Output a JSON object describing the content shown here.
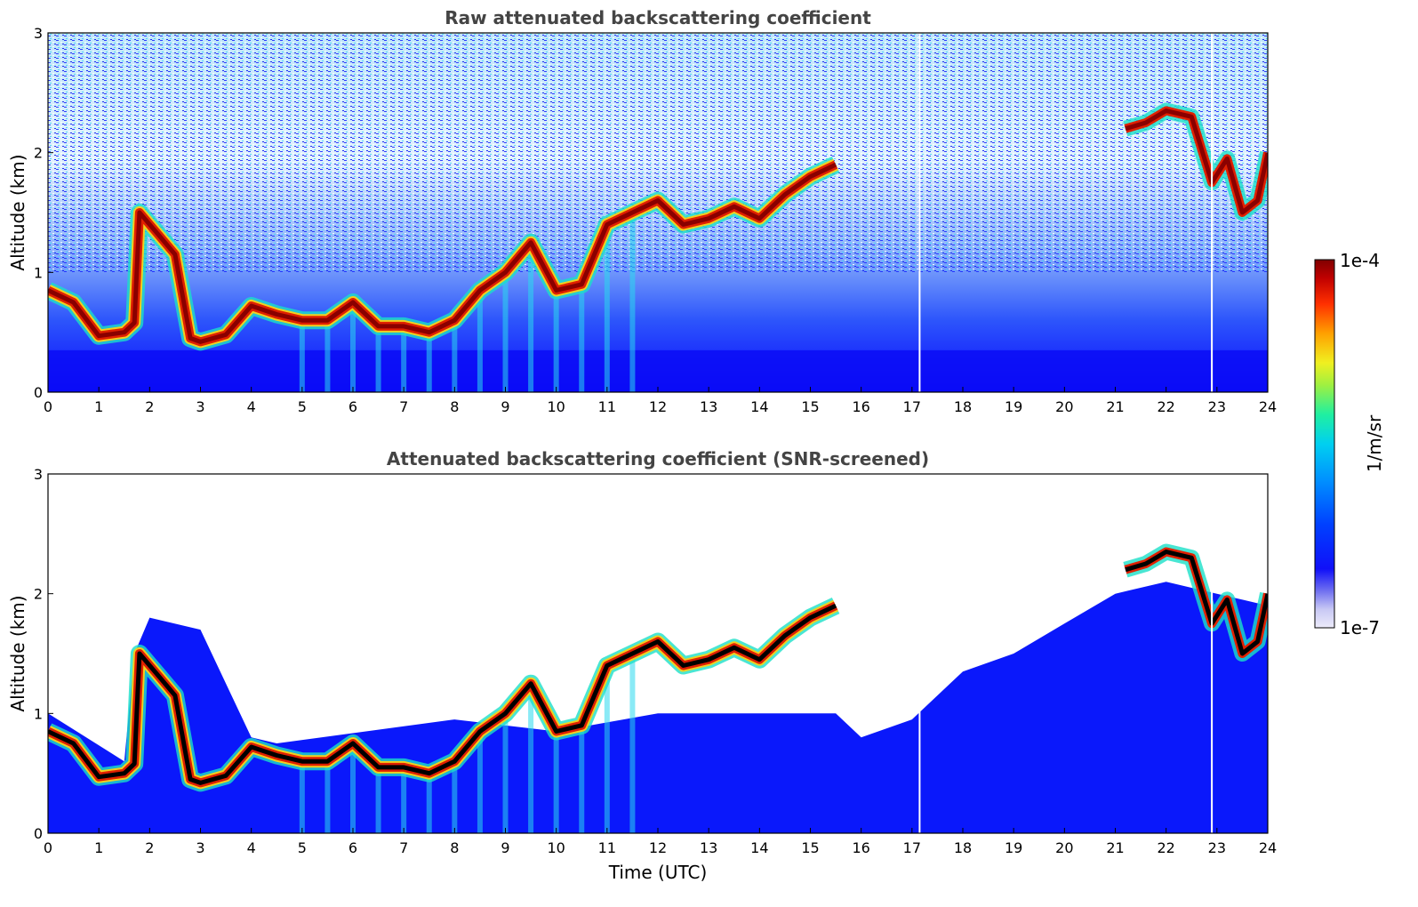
{
  "figure": {
    "xlabel": "Time (UTC)",
    "ylabel": "Altitude (km)",
    "colorbar": {
      "label": "1/m/sr",
      "min_label": "1e-7",
      "max_label": "1e-4",
      "scale": "log",
      "colormap": [
        "#e8e8f8",
        "#9a9af0",
        "#2020f8",
        "#0000ff",
        "#0060ff",
        "#00b0ff",
        "#00e8c8",
        "#60ff60",
        "#e8f020",
        "#ffb000",
        "#ff4000",
        "#d00000",
        "#800000"
      ]
    }
  },
  "chart_data": [
    {
      "type": "heatmap",
      "title": "Raw attenuated backscattering coefficient",
      "xlabel": "",
      "ylabel": "Altitude (km)",
      "xlim": [
        0,
        24
      ],
      "ylim": [
        0,
        3
      ],
      "xticks": [
        0,
        1,
        2,
        3,
        4,
        5,
        6,
        7,
        8,
        9,
        10,
        11,
        12,
        13,
        14,
        15,
        16,
        17,
        18,
        19,
        20,
        21,
        22,
        23,
        24
      ],
      "yticks": [
        0,
        1,
        2,
        3
      ],
      "grid": false,
      "cloud_layer": {
        "time": [
          0,
          0.5,
          1,
          1.5,
          1.7,
          1.8,
          2.2,
          2.5,
          2.8,
          3.0,
          3.5,
          4.0,
          4.5,
          5.0,
          5.5,
          6.0,
          6.5,
          7.0,
          7.5,
          8.0,
          8.5,
          9.0,
          9.5,
          10.0,
          10.5,
          11.0,
          11.5,
          12.0,
          12.5,
          13.0,
          13.5,
          14.0,
          14.5,
          15.0,
          15.5
        ],
        "altitude_km": [
          0.85,
          0.75,
          0.47,
          0.5,
          0.58,
          1.5,
          1.3,
          1.15,
          0.45,
          0.42,
          0.48,
          0.72,
          0.65,
          0.6,
          0.6,
          0.75,
          0.55,
          0.55,
          0.5,
          0.6,
          0.85,
          1.0,
          1.25,
          0.85,
          0.9,
          1.4,
          1.5,
          1.6,
          1.4,
          1.45,
          1.55,
          1.45,
          1.65,
          1.8,
          1.9
        ]
      },
      "upper_cloud": {
        "time": [
          21.2,
          21.6,
          22.0,
          22.5,
          22.9,
          23.2,
          23.5,
          23.8,
          24.0
        ],
        "altitude_km": [
          2.2,
          2.25,
          2.35,
          2.3,
          1.75,
          1.95,
          1.5,
          1.6,
          2.0
        ]
      },
      "boundary_layer_top_km": 0.35,
      "noise_above_km": 1.0,
      "data_gaps_utc": [
        17.15,
        22.9
      ],
      "value_range": [
        "1e-7",
        "1e-4"
      ],
      "colorscale": "log"
    },
    {
      "type": "heatmap",
      "title": "Attenuated backscattering coefficient (SNR-screened)",
      "xlabel": "Time (UTC)",
      "ylabel": "Altitude (km)",
      "xlim": [
        0,
        24
      ],
      "ylim": [
        0,
        3
      ],
      "xticks": [
        0,
        1,
        2,
        3,
        4,
        5,
        6,
        7,
        8,
        9,
        10,
        11,
        12,
        13,
        14,
        15,
        16,
        17,
        18,
        19,
        20,
        21,
        22,
        23,
        24
      ],
      "yticks": [
        0,
        1,
        2,
        3
      ],
      "grid": false,
      "cloud_layer": {
        "time": [
          0,
          0.5,
          1,
          1.5,
          1.7,
          1.8,
          2.2,
          2.5,
          2.8,
          3.0,
          3.5,
          4.0,
          4.5,
          5.0,
          5.5,
          6.0,
          6.5,
          7.0,
          7.5,
          8.0,
          8.5,
          9.0,
          9.5,
          10.0,
          10.5,
          11.0,
          11.5,
          12.0,
          12.5,
          13.0,
          13.5,
          14.0,
          14.5,
          15.0,
          15.5
        ],
        "altitude_km": [
          0.85,
          0.75,
          0.47,
          0.5,
          0.58,
          1.5,
          1.3,
          1.15,
          0.45,
          0.42,
          0.48,
          0.72,
          0.65,
          0.6,
          0.6,
          0.75,
          0.55,
          0.55,
          0.5,
          0.6,
          0.85,
          1.0,
          1.25,
          0.85,
          0.9,
          1.4,
          1.5,
          1.6,
          1.4,
          1.45,
          1.55,
          1.45,
          1.65,
          1.8,
          1.9
        ]
      },
      "upper_cloud": {
        "time": [
          21.2,
          21.6,
          22.0,
          22.5,
          22.9,
          23.2,
          23.5,
          23.8,
          24.0
        ],
        "altitude_km": [
          2.2,
          2.25,
          2.35,
          2.3,
          1.75,
          1.95,
          1.5,
          1.6,
          2.0
        ]
      },
      "aerosol_top": {
        "time": [
          0,
          1.5,
          1.7,
          2.0,
          3.0,
          4.0,
          4.5,
          8.0,
          10.0,
          12.0,
          15.5,
          16.0,
          17.0,
          18.0,
          19.0,
          20.0,
          21.0,
          22.0,
          23.0,
          24.0
        ],
        "altitude_km": [
          1.0,
          0.6,
          1.5,
          1.8,
          1.7,
          0.8,
          0.75,
          0.95,
          0.85,
          1.0,
          1.0,
          0.8,
          0.95,
          1.35,
          1.5,
          1.75,
          2.0,
          2.1,
          2.0,
          1.9
        ]
      },
      "data_gaps_utc": [
        17.15,
        22.9
      ],
      "value_range": [
        "1e-7",
        "1e-4"
      ],
      "colorscale": "log"
    }
  ]
}
